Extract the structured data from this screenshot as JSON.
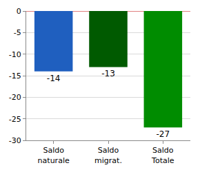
{
  "chart_data": {
    "type": "bar",
    "categories": [
      "Saldo naturale",
      "Saldo migrat.",
      "Saldo Totale"
    ],
    "values": [
      -14,
      -13,
      -27
    ],
    "colors": [
      "#1f5fbf",
      "#005a00",
      "#008c00"
    ],
    "ylim": [
      -30,
      0
    ],
    "yticks": [
      -30,
      -25,
      -20,
      -15,
      -10,
      -5,
      0
    ],
    "grid": true,
    "data_labels": true
  }
}
